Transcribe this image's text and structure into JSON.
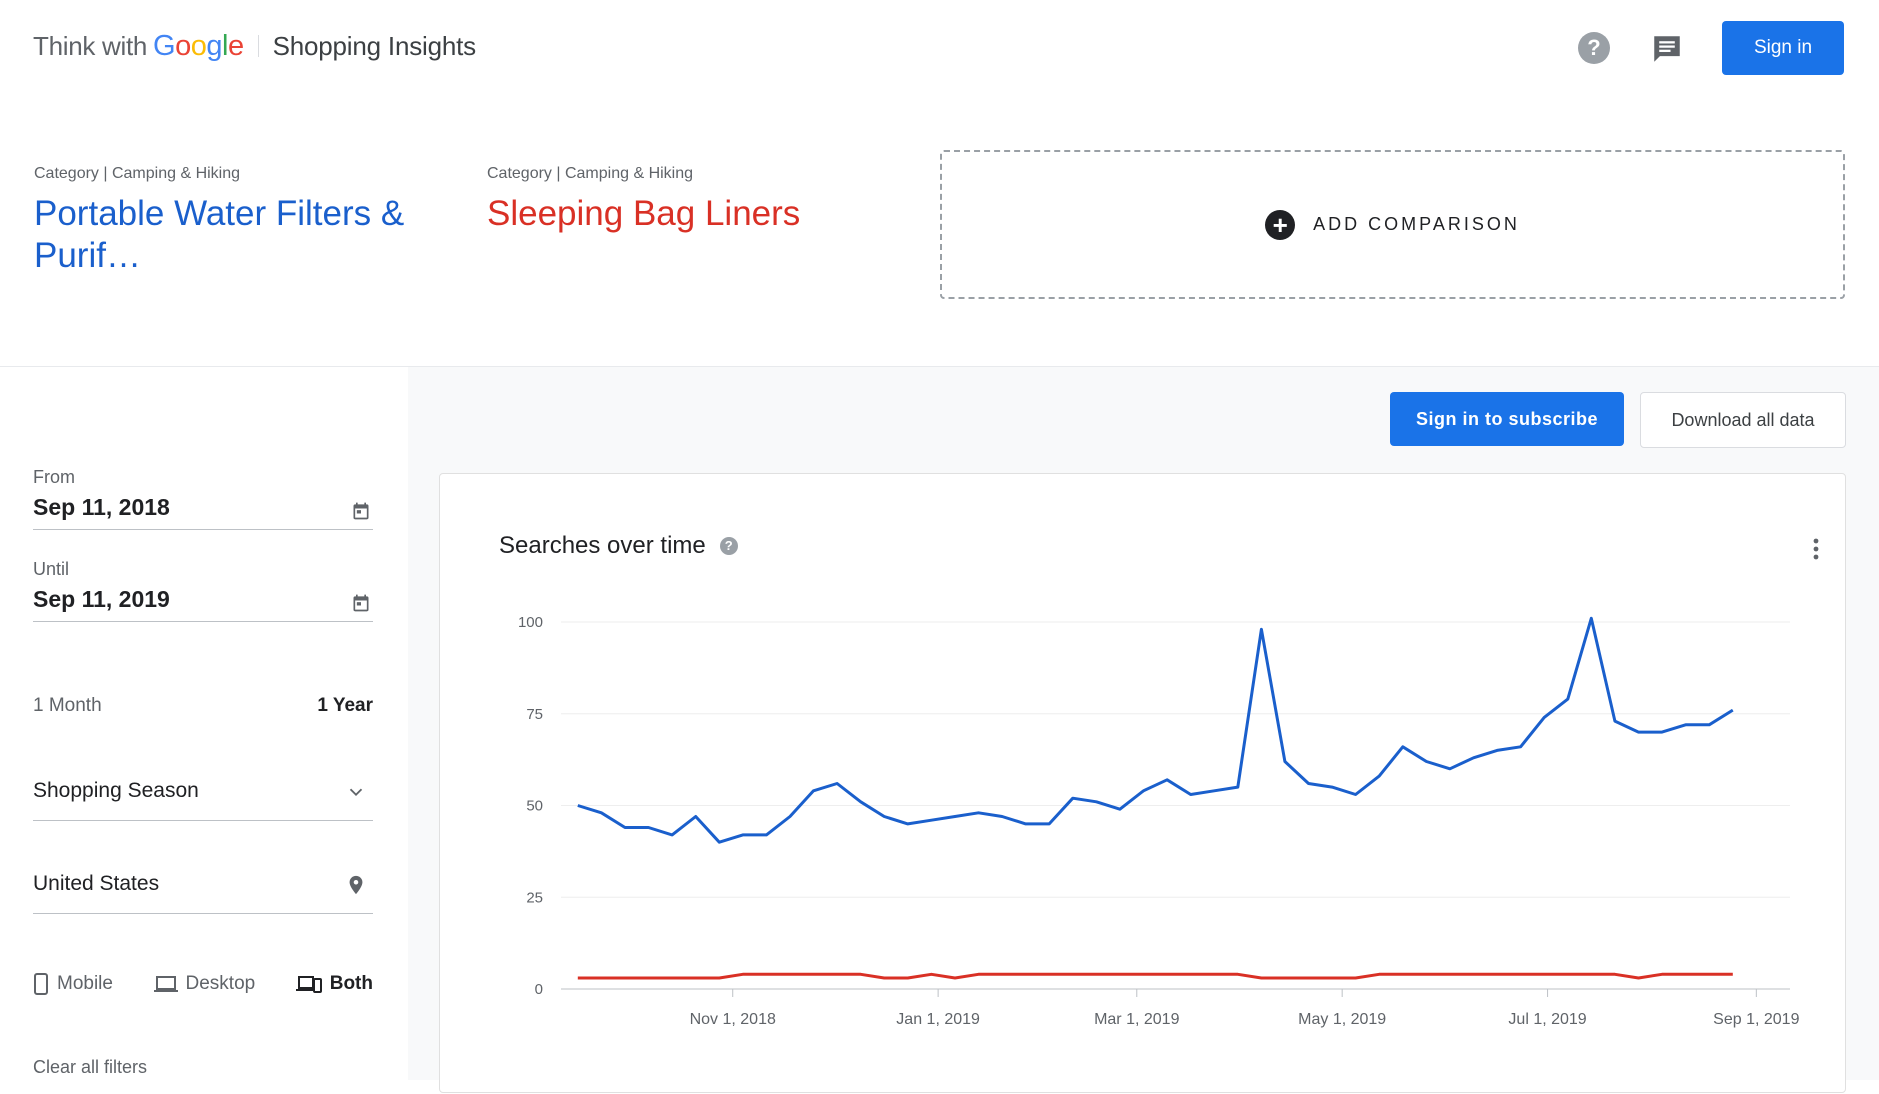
{
  "header": {
    "brand_prefix": "Think with",
    "brand_google": [
      "G",
      "o",
      "o",
      "g",
      "l",
      "e"
    ],
    "product": "Shopping Insights",
    "sign_in": "Sign in"
  },
  "terms": [
    {
      "category": "Category | Camping & Hiking",
      "name": "Portable Water Filters & Purif…",
      "color": "#1a5fcc"
    },
    {
      "category": "Category | Camping & Hiking",
      "name": "Sleeping Bag Liners",
      "color": "#d93025"
    }
  ],
  "add_comparison": "ADD COMPARISON",
  "filters": {
    "from_label": "From",
    "from_value": "Sep 11, 2018",
    "until_label": "Until",
    "until_value": "Sep 11, 2019",
    "range_options": [
      "1 Month",
      "1 Year"
    ],
    "range_selected": "1 Year",
    "season": "Shopping Season",
    "location": "United States",
    "devices": [
      "Mobile",
      "Desktop",
      "Both"
    ],
    "device_selected": "Both",
    "clear": "Clear all filters"
  },
  "actions": {
    "subscribe": "Sign in to subscribe",
    "download": "Download all data"
  },
  "chart_data": {
    "type": "line",
    "title": "Searches over time",
    "ylim": [
      0,
      100
    ],
    "yticks": [
      0,
      25,
      50,
      75,
      100
    ],
    "xticks": [
      "Nov 1, 2018",
      "Jan 1, 2019",
      "Mar 1, 2019",
      "May 1, 2019",
      "Jul 1, 2019",
      "Sep 1, 2019"
    ],
    "x": [
      "2018-09-16",
      "2018-09-23",
      "2018-09-30",
      "2018-10-07",
      "2018-10-14",
      "2018-10-21",
      "2018-10-28",
      "2018-11-04",
      "2018-11-11",
      "2018-11-18",
      "2018-11-25",
      "2018-12-02",
      "2018-12-09",
      "2018-12-16",
      "2018-12-23",
      "2018-12-30",
      "2019-01-06",
      "2019-01-13",
      "2019-01-20",
      "2019-01-27",
      "2019-02-03",
      "2019-02-10",
      "2019-02-17",
      "2019-02-24",
      "2019-03-03",
      "2019-03-10",
      "2019-03-17",
      "2019-03-24",
      "2019-03-31",
      "2019-04-07",
      "2019-04-14",
      "2019-04-21",
      "2019-04-28",
      "2019-05-05",
      "2019-05-12",
      "2019-05-19",
      "2019-05-26",
      "2019-06-02",
      "2019-06-09",
      "2019-06-16",
      "2019-06-23",
      "2019-06-30",
      "2019-07-07",
      "2019-07-14",
      "2019-07-21",
      "2019-07-28",
      "2019-08-04",
      "2019-08-11",
      "2019-08-18",
      "2019-08-25"
    ],
    "series": [
      {
        "values": [
          50,
          48,
          44,
          44,
          42,
          47,
          40,
          42,
          42,
          47,
          54,
          56,
          51,
          47,
          45,
          46,
          47,
          48,
          47,
          45,
          45,
          52,
          51,
          49,
          54,
          57,
          53,
          54,
          55,
          98,
          62,
          56,
          55,
          53,
          58,
          66,
          62,
          60,
          63,
          65,
          66,
          74,
          79,
          101,
          73,
          70,
          70,
          72,
          72,
          76
        ],
        "color": "#1a5fcc"
      },
      {
        "values": [
          3,
          3,
          3,
          3,
          3,
          3,
          3,
          4,
          4,
          4,
          4,
          4,
          4,
          3,
          3,
          4,
          3,
          4,
          4,
          4,
          4,
          4,
          4,
          4,
          4,
          4,
          4,
          4,
          4,
          3,
          3,
          3,
          3,
          3,
          4,
          4,
          4,
          4,
          4,
          4,
          4,
          4,
          4,
          4,
          4,
          3,
          4,
          4,
          4,
          4
        ],
        "color": "#d93025"
      }
    ]
  }
}
